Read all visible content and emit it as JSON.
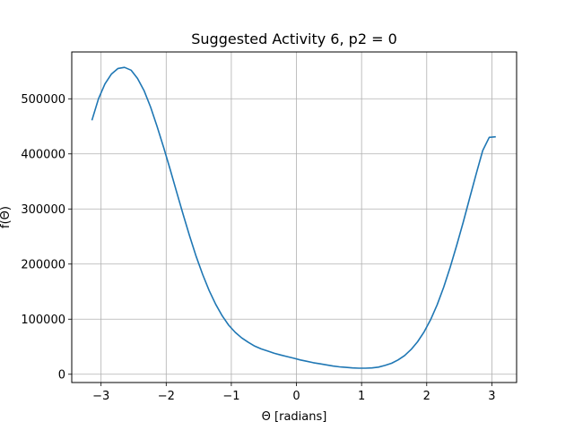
{
  "chart_data": {
    "type": "line",
    "title": "Suggested Activity 6, p2 = 0",
    "xlabel": "Θ [radians]",
    "ylabel": "f(Θ)",
    "xlim": [
      -3.45,
      3.38
    ],
    "ylim": [
      -15000,
      585000
    ],
    "grid": true,
    "x_ticks": [
      {
        "value": -3,
        "label": "−3"
      },
      {
        "value": -2,
        "label": "−2"
      },
      {
        "value": -1,
        "label": "−1"
      },
      {
        "value": 0,
        "label": "0"
      },
      {
        "value": 1,
        "label": "1"
      },
      {
        "value": 2,
        "label": "2"
      },
      {
        "value": 3,
        "label": "3"
      }
    ],
    "y_ticks": [
      {
        "value": 0,
        "label": "0"
      },
      {
        "value": 100000,
        "label": "100000"
      },
      {
        "value": 200000,
        "label": "200000"
      },
      {
        "value": 300000,
        "label": "300000"
      },
      {
        "value": 400000,
        "label": "400000"
      },
      {
        "value": 500000,
        "label": "500000"
      }
    ],
    "series": [
      {
        "color": "#1f77b4",
        "x": [
          -3.14,
          -3.04,
          -2.94,
          -2.84,
          -2.74,
          -2.64,
          -2.54,
          -2.44,
          -2.34,
          -2.24,
          -2.14,
          -2.04,
          -1.94,
          -1.84,
          -1.74,
          -1.64,
          -1.54,
          -1.44,
          -1.34,
          -1.24,
          -1.14,
          -1.04,
          -0.94,
          -0.84,
          -0.74,
          -0.64,
          -0.54,
          -0.44,
          -0.34,
          -0.24,
          -0.14,
          -0.04,
          0.06,
          0.16,
          0.26,
          0.36,
          0.46,
          0.56,
          0.66,
          0.76,
          0.86,
          0.96,
          1.06,
          1.16,
          1.26,
          1.36,
          1.46,
          1.56,
          1.66,
          1.76,
          1.86,
          1.96,
          2.06,
          2.16,
          2.26,
          2.36,
          2.46,
          2.56,
          2.66,
          2.76,
          2.86,
          2.96,
          3.06
        ],
        "y": [
          461000,
          500000,
          527000,
          545000,
          555000,
          557000,
          552000,
          537000,
          515000,
          485000,
          450000,
          412000,
          372000,
          331000,
          290000,
          251000,
          214000,
          181000,
          152000,
          127000,
          106000,
          89000,
          76000,
          66000,
          58000,
          51000,
          46000,
          42000,
          38000,
          35000,
          32000,
          29000,
          26000,
          23500,
          21000,
          19000,
          17000,
          15000,
          13500,
          12500,
          11500,
          11000,
          11000,
          11500,
          13000,
          16000,
          20000,
          26000,
          34000,
          45000,
          59000,
          77000,
          99000,
          126000,
          158000,
          194000,
          234000,
          276000,
          320000,
          364000,
          406000,
          430000,
          431000
        ]
      }
    ]
  }
}
